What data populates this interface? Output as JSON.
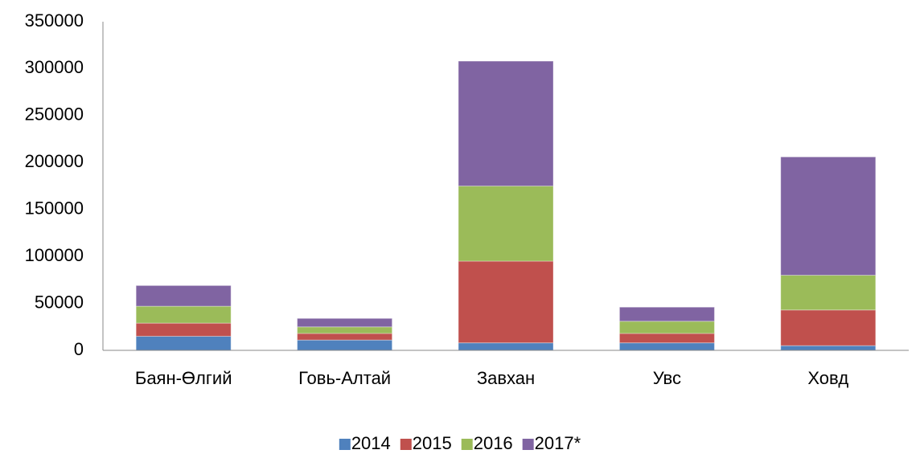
{
  "chart_data": {
    "type": "stacked_bar",
    "categories": [
      "Баян-Өлгий",
      "Говь-Алтай",
      "Завхан",
      "Увс",
      "Ховд"
    ],
    "series": [
      {
        "name": "2014",
        "color": "#4f81bd",
        "values": [
          15000,
          11000,
          8000,
          8000,
          5000
        ]
      },
      {
        "name": "2015",
        "color": "#c0504d",
        "values": [
          14000,
          7000,
          87000,
          10000,
          38000
        ]
      },
      {
        "name": "2016",
        "color": "#9bbb59",
        "values": [
          18000,
          7000,
          80000,
          13000,
          37000
        ]
      },
      {
        "name": "2017*",
        "color": "#8064a2",
        "values": [
          22000,
          9000,
          133000,
          15000,
          126000
        ]
      }
    ],
    "ylim": [
      0,
      350000
    ],
    "yticks": [
      0,
      50000,
      100000,
      150000,
      200000,
      250000,
      300000,
      350000
    ],
    "grid": false,
    "legend": "bottom"
  }
}
